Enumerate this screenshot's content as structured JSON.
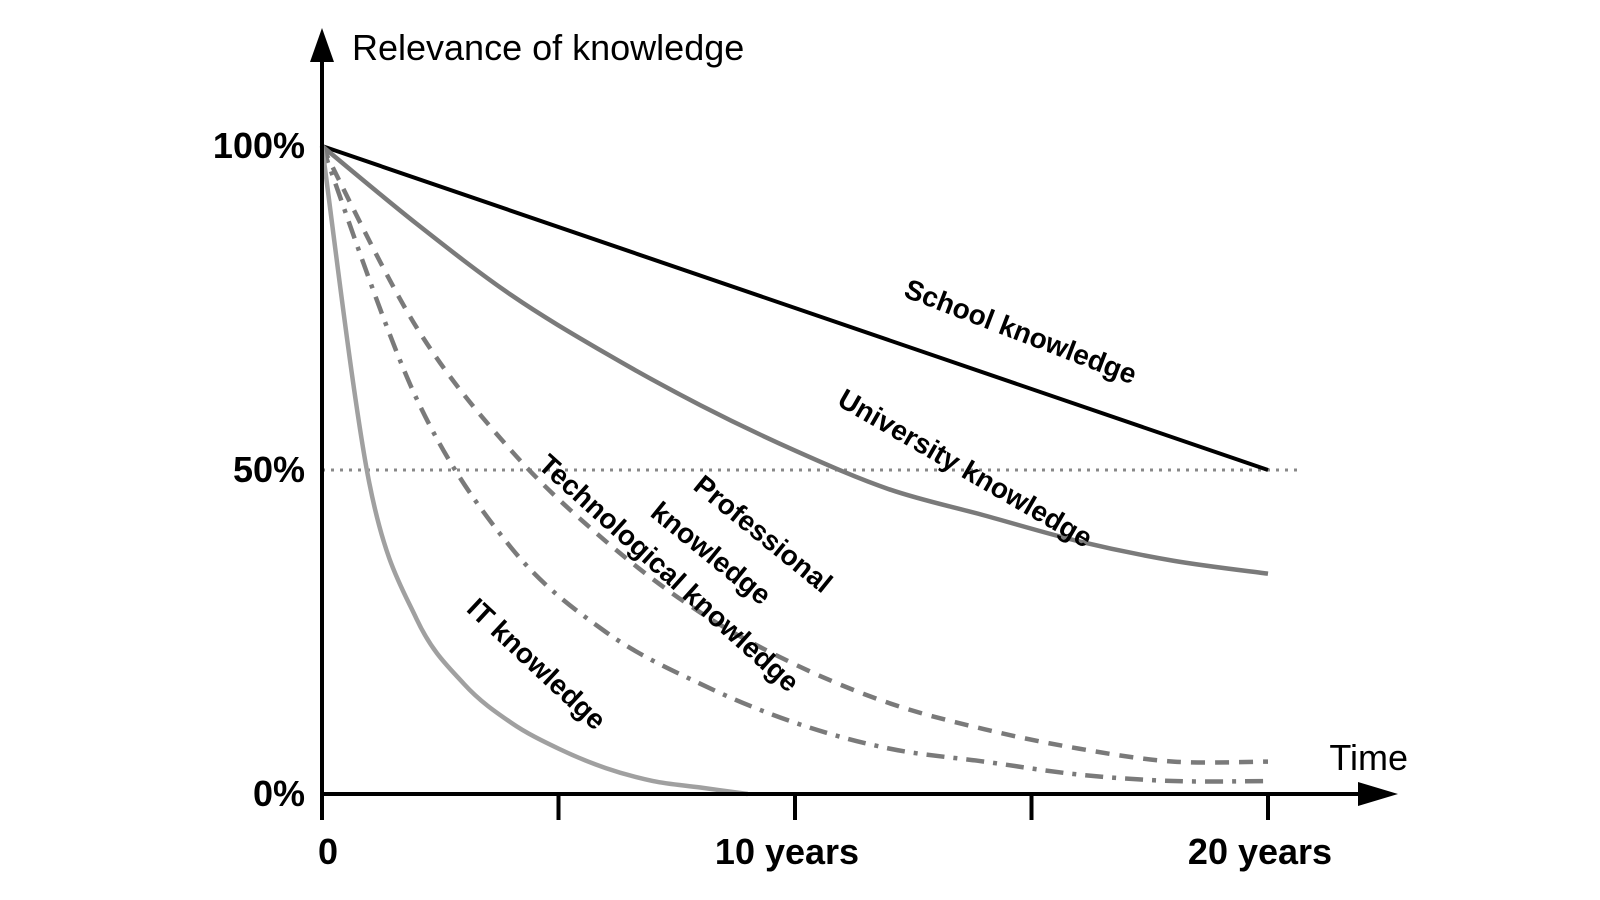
{
  "chart_data": {
    "type": "line",
    "xlabel": "Time",
    "ylabel": "Relevance of knowledge",
    "xlim": [
      0,
      20
    ],
    "ylim": [
      0,
      100
    ],
    "x_ticks": [
      0,
      5,
      10,
      15,
      20
    ],
    "x_tick_labels": [
      {
        "x": 0,
        "label": "0"
      },
      {
        "x": 10,
        "label": "10 years"
      },
      {
        "x": 20,
        "label": "20 years"
      }
    ],
    "y_tick_labels": [
      {
        "y": 100,
        "label": "100%"
      },
      {
        "y": 50,
        "label": "50%"
      },
      {
        "y": 0,
        "label": "0%"
      }
    ],
    "reference_line": {
      "y": 50,
      "style": "dotted",
      "color": "#888888"
    },
    "series": [
      {
        "name": "School knowledge",
        "color": "#000000",
        "dash": "solid",
        "x": [
          0,
          20
        ],
        "y": [
          100,
          50
        ]
      },
      {
        "name": "University knowledge",
        "color": "#7a7a7a",
        "dash": "solid",
        "x": [
          0,
          2,
          4,
          6,
          8,
          10,
          12,
          14,
          16,
          18,
          20
        ],
        "y": [
          100,
          88,
          77,
          68,
          60,
          53,
          47,
          43,
          39,
          36,
          34
        ]
      },
      {
        "name": "Professional knowledge",
        "color": "#7a7a7a",
        "dash": "dashed",
        "x": [
          0,
          2,
          4,
          6,
          8,
          10,
          12,
          14,
          16,
          18,
          20
        ],
        "y": [
          100,
          72,
          53,
          39,
          28,
          20,
          14,
          10,
          7,
          5,
          5
        ]
      },
      {
        "name": "Technological knowledge",
        "color": "#7a7a7a",
        "dash": "dashdot",
        "x": [
          0,
          2,
          4,
          6,
          8,
          10,
          12,
          14,
          16,
          18,
          20
        ],
        "y": [
          100,
          61,
          38,
          25,
          17,
          11,
          7,
          5,
          3,
          2,
          2
        ]
      },
      {
        "name": "IT knowledge",
        "color": "#a0a0a0",
        "dash": "solid",
        "x": [
          0,
          1,
          2,
          3,
          4,
          5,
          6,
          7,
          8,
          9
        ],
        "y": [
          100,
          48,
          27,
          17,
          11,
          7,
          4,
          2,
          1,
          0
        ]
      }
    ],
    "series_labels": [
      {
        "text": "School knowledge",
        "anchor_x": 14.7,
        "anchor_y": 70
      },
      {
        "text": "University knowledge",
        "anchor_x": 13.5,
        "anchor_y": 49
      },
      {
        "text": "Professional",
        "anchor_x": 9.2,
        "anchor_y": 39
      },
      {
        "text": "knowledge",
        "anchor_x": 8.1,
        "anchor_y": 36
      },
      {
        "text": "Technological knowledge",
        "anchor_x": 7.2,
        "anchor_y": 33
      },
      {
        "text": "IT knowledge",
        "anchor_x": 4.4,
        "anchor_y": 19
      }
    ]
  }
}
